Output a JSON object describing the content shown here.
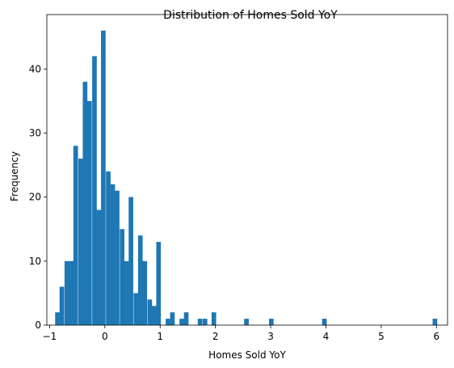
{
  "chart_data": {
    "type": "bar",
    "title": "Distribution of Homes Sold YoY",
    "xlabel": "Homes Sold YoY",
    "ylabel": "Frequency",
    "xlim": [
      -1.05,
      6.2
    ],
    "ylim": [
      0,
      48.5
    ],
    "x_ticks": [
      -1,
      0,
      1,
      2,
      3,
      4,
      5,
      6
    ],
    "y_ticks": [
      0,
      10,
      20,
      30,
      40
    ],
    "bin_width": 0.0833,
    "bar_color": "#1f77b4",
    "bins": [
      {
        "x0": -0.9,
        "count": 2
      },
      {
        "x0": -0.82,
        "count": 6
      },
      {
        "x0": -0.73,
        "count": 10
      },
      {
        "x0": -0.65,
        "count": 10
      },
      {
        "x0": -0.57,
        "count": 28
      },
      {
        "x0": -0.48,
        "count": 26
      },
      {
        "x0": -0.4,
        "count": 38
      },
      {
        "x0": -0.32,
        "count": 35
      },
      {
        "x0": -0.23,
        "count": 42
      },
      {
        "x0": -0.15,
        "count": 18
      },
      {
        "x0": -0.07,
        "count": 46
      },
      {
        "x0": 0.02,
        "count": 24
      },
      {
        "x0": 0.1,
        "count": 22
      },
      {
        "x0": 0.18,
        "count": 21
      },
      {
        "x0": 0.27,
        "count": 15
      },
      {
        "x0": 0.35,
        "count": 10
      },
      {
        "x0": 0.43,
        "count": 20
      },
      {
        "x0": 0.52,
        "count": 5
      },
      {
        "x0": 0.6,
        "count": 14
      },
      {
        "x0": 0.68,
        "count": 10
      },
      {
        "x0": 0.77,
        "count": 4
      },
      {
        "x0": 0.85,
        "count": 3
      },
      {
        "x0": 0.93,
        "count": 13
      },
      {
        "x0": 1.1,
        "count": 1
      },
      {
        "x0": 1.18,
        "count": 2
      },
      {
        "x0": 1.35,
        "count": 1
      },
      {
        "x0": 1.43,
        "count": 2
      },
      {
        "x0": 1.68,
        "count": 1
      },
      {
        "x0": 1.77,
        "count": 1
      },
      {
        "x0": 1.93,
        "count": 2
      },
      {
        "x0": 2.52,
        "count": 1
      },
      {
        "x0": 2.97,
        "count": 1
      },
      {
        "x0": 3.93,
        "count": 1
      },
      {
        "x0": 5.93,
        "count": 1
      }
    ]
  }
}
